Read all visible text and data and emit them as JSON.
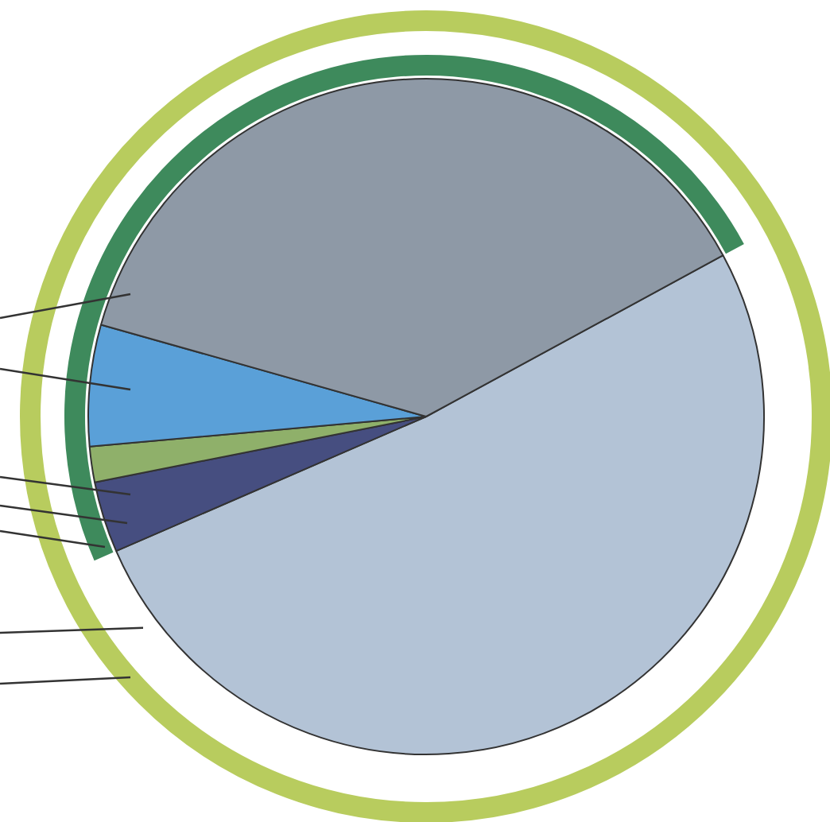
{
  "chart_data": {
    "type": "pie",
    "categories": [
      null,
      null,
      null,
      null,
      null
    ],
    "values": [
      51.4,
      3.4,
      1.7,
      5.8,
      37.7
    ],
    "colors": [
      "#b3c3d6",
      "#464e80",
      "#8fb06a",
      "#5aa0d8",
      "#8e99a6"
    ]
  }
}
